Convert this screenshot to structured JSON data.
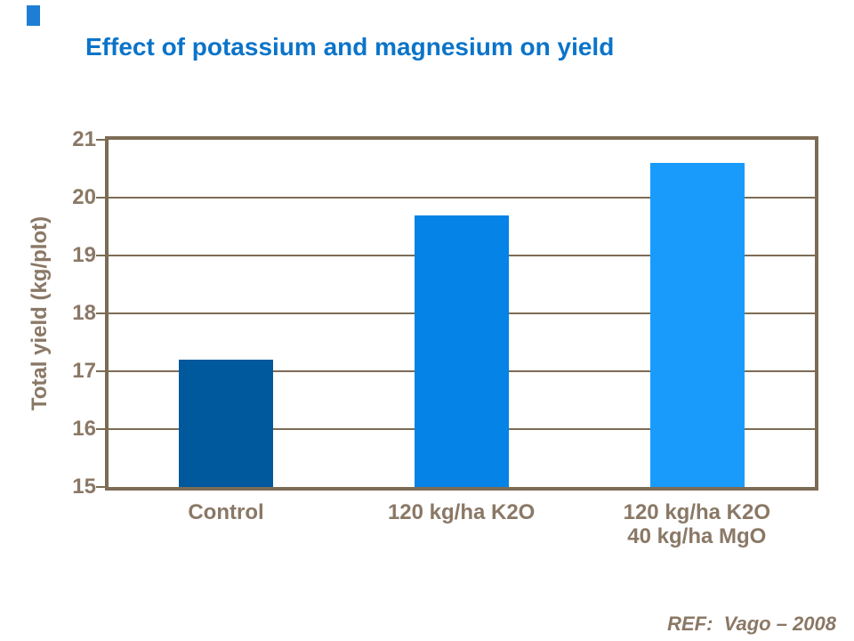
{
  "slide": {
    "title": "Effect of potassium and magnesium on yield",
    "reference": "REF:  Vago – 2008"
  },
  "colors": {
    "title_blue": "#0b74c9",
    "axis_text_brown": "#8a7866",
    "frame_brown": "#7c6c55",
    "accent_blue": "#1e7ed4"
  },
  "chart_data": {
    "type": "bar",
    "title": "",
    "categories": [
      "Control",
      "120 kg/ha K2O",
      "120 kg/ha K2O\n40 kg/ha MgO"
    ],
    "values": [
      17.2,
      19.7,
      20.6
    ],
    "bar_colors": [
      "#00589d",
      "#0583e6",
      "#199bfc"
    ],
    "xlabel": "",
    "ylabel": "Total yield (kg/plot)",
    "ylim": [
      15,
      21
    ],
    "yticks": [
      15,
      16,
      17,
      18,
      19,
      20,
      21
    ],
    "grid": true,
    "legend": false
  }
}
